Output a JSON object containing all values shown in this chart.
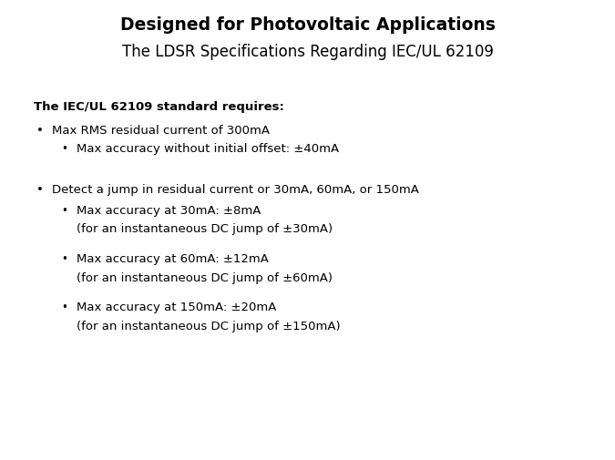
{
  "title_line1": "Designed for Photovoltaic Applications",
  "title_line2": "The LDSR Specifications Regarding IEC/UL 62109",
  "background_color": "#ffffff",
  "text_color": "#000000",
  "title_line1_fontsize": 13.5,
  "title_line2_fontsize": 12,
  "body_fontsize": 9.5,
  "section_header": "The IEC/UL 62109 standard requires:",
  "bullet1": "Max RMS residual current of 300mA",
  "bullet1_sub": "Max accuracy without initial offset: ±40mA",
  "bullet2": "Detect a jump in residual current or 30mA, 60mA, or 150mA",
  "bullet2_sub1_line1": "Max accuracy at 30mA: ±8mA",
  "bullet2_sub1_line2": "(for an instantaneous DC jump of ±30mA)",
  "bullet2_sub2_line1": "Max accuracy at 60mA: ±12mA",
  "bullet2_sub2_line2": "(for an instantaneous DC jump of ±60mA)",
  "bullet2_sub3_line1": "Max accuracy at 150mA: ±20mA",
  "bullet2_sub3_line2": "(for an instantaneous DC jump of ±150mA)",
  "fig_width": 6.75,
  "fig_height": 5.06,
  "dpi": 100
}
